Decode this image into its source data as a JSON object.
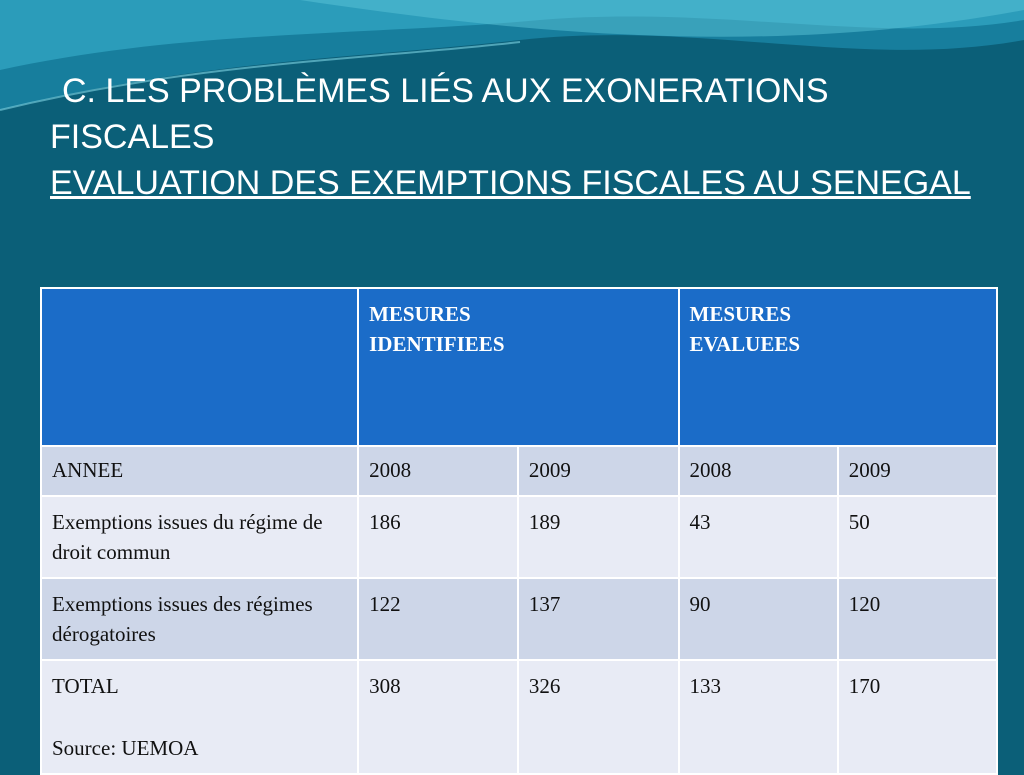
{
  "title": {
    "line1": "C. LES PROBLÈMES LIÉS AUX EXONERATIONS FISCALES",
    "line2": "EVALUATION DES EXEMPTIONS FISCALES AU SENEGAL"
  },
  "table": {
    "header": [
      "MESURES IDENTIFIEES",
      "MESURES EVALUEES"
    ],
    "rows": [
      [
        "ANNEE",
        "2008",
        "2009",
        "2008",
        "2009"
      ],
      [
        "Exemptions issues du régime de droit commun",
        186,
        189,
        43,
        50
      ],
      [
        "Exemptions issues des régimes dérogatoires",
        122,
        137,
        90,
        120
      ],
      [
        "TOTAL",
        308,
        326,
        133,
        170
      ]
    ],
    "source": "Source: UEMOA"
  }
}
